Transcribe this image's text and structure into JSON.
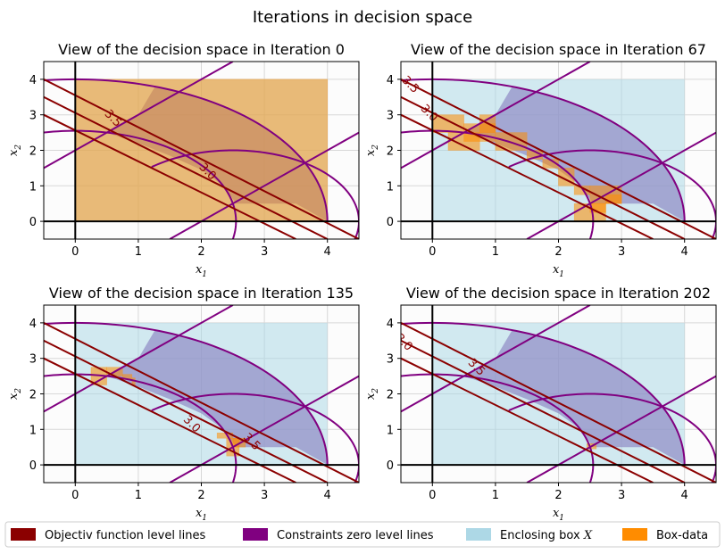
{
  "figure_title": "Iterations in decision space",
  "colors": {
    "objective": "#8b0000",
    "constraint": "#800080",
    "box": "#add8e6",
    "boxdata": "#ff8c00",
    "feasible": "#8b84c2",
    "background": "#fcfcfc",
    "grid": "#d8d8d8"
  },
  "legend": [
    {
      "label": "Objectiv function level lines",
      "color": "#8b0000"
    },
    {
      "label": "Constraints zero level lines",
      "color": "#800080"
    },
    {
      "label": "Enclosing box X",
      "color": "#add8e6"
    },
    {
      "label": "Box-data",
      "color": "#ff8c00"
    }
  ],
  "chart_data": [
    {
      "type": "area",
      "title": "View of the decision space in Iteration 0",
      "xlabel": "x1",
      "ylabel": "x2",
      "xlim": [
        -0.5,
        4.5
      ],
      "ylim": [
        -0.5,
        4.5
      ],
      "xticks": [
        0,
        1,
        2,
        3,
        4
      ],
      "yticks": [
        0,
        1,
        2,
        3,
        4
      ],
      "grid": true,
      "enclosing_box": [
        0,
        4,
        0,
        4
      ],
      "objective_levels": [
        3.0,
        3.5
      ],
      "level_labels": [
        {
          "text": "3.5",
          "x": 0.6,
          "y": 2.9,
          "angle": -45
        },
        {
          "text": "3.0",
          "x": 2.1,
          "y": 1.4,
          "angle": -45
        }
      ],
      "boxes": [
        [
          0,
          4,
          0,
          4
        ]
      ]
    },
    {
      "type": "area",
      "title": "View of the decision space in Iteration 67",
      "xlabel": "x1",
      "ylabel": "x2",
      "xlim": [
        -0.5,
        4.5
      ],
      "ylim": [
        -0.5,
        4.5
      ],
      "xticks": [
        0,
        1,
        2,
        3,
        4
      ],
      "yticks": [
        0,
        1,
        2,
        3,
        4
      ],
      "grid": true,
      "enclosing_box": [
        0,
        4,
        0,
        4
      ],
      "objective_levels": [
        3.0,
        3.5
      ],
      "level_labels": [
        {
          "text": "3.5",
          "x": -0.35,
          "y": 3.85,
          "angle": -45
        },
        {
          "text": "3.0",
          "x": -0.05,
          "y": 3.05,
          "angle": -45
        }
      ],
      "boxes": [
        [
          0.0,
          0.5,
          2.5,
          3.0
        ],
        [
          0.25,
          0.75,
          2.0,
          2.5
        ],
        [
          0.5,
          1.0,
          2.25,
          2.75
        ],
        [
          0.75,
          1.0,
          2.5,
          3.0
        ],
        [
          1.0,
          1.5,
          2.0,
          2.5
        ],
        [
          1.5,
          1.75,
          1.75,
          2.0
        ],
        [
          1.75,
          2.0,
          1.5,
          1.75
        ],
        [
          2.0,
          2.25,
          1.0,
          1.5
        ],
        [
          2.25,
          2.5,
          0.75,
          1.0
        ],
        [
          2.5,
          3.0,
          0.5,
          1.0
        ],
        [
          2.25,
          2.75,
          0.0,
          0.5
        ],
        [
          2.5,
          2.75,
          0.25,
          0.5
        ],
        [
          2.75,
          3.0,
          0.5,
          0.75
        ]
      ]
    },
    {
      "type": "area",
      "title": "View of the decision space in Iteration 135",
      "xlabel": "x1",
      "ylabel": "x2",
      "xlim": [
        -0.5,
        4.5
      ],
      "ylim": [
        -0.5,
        4.5
      ],
      "xticks": [
        0,
        1,
        2,
        3,
        4
      ],
      "yticks": [
        0,
        1,
        2,
        3,
        4
      ],
      "grid": true,
      "enclosing_box": [
        0,
        4,
        0,
        4
      ],
      "objective_levels": [
        3.0,
        3.5
      ],
      "level_labels": [
        {
          "text": "3.0",
          "x": 1.85,
          "y": 1.15,
          "angle": -45
        },
        {
          "text": "3.5",
          "x": 2.8,
          "y": 0.65,
          "angle": -45
        }
      ],
      "boxes": [
        [
          0.25,
          0.5,
          2.25,
          2.75
        ],
        [
          0.5,
          0.75,
          2.5,
          2.75
        ],
        [
          0.75,
          0.9,
          2.4,
          2.55
        ],
        [
          0.9,
          0.95,
          2.25,
          2.45
        ],
        [
          2.25,
          2.5,
          0.75,
          0.9
        ],
        [
          2.4,
          2.6,
          0.25,
          0.75
        ],
        [
          2.5,
          2.7,
          0.5,
          0.75
        ]
      ]
    },
    {
      "type": "area",
      "title": "View of the decision space in Iteration 202",
      "xlabel": "x1",
      "ylabel": "x2",
      "xlim": [
        -0.5,
        4.5
      ],
      "ylim": [
        -0.5,
        4.5
      ],
      "xticks": [
        0,
        1,
        2,
        3,
        4
      ],
      "yticks": [
        0,
        1,
        2,
        3,
        4
      ],
      "grid": true,
      "enclosing_box": [
        0,
        4,
        0,
        4
      ],
      "objective_levels": [
        3.0,
        3.5
      ],
      "level_labels": [
        {
          "text": "3.0",
          "x": -0.45,
          "y": 3.45,
          "angle": -45
        },
        {
          "text": "3.5",
          "x": 0.7,
          "y": 2.75,
          "angle": -45
        }
      ],
      "boxes": [
        [
          2.45,
          2.6,
          0.45,
          0.6
        ]
      ]
    }
  ]
}
